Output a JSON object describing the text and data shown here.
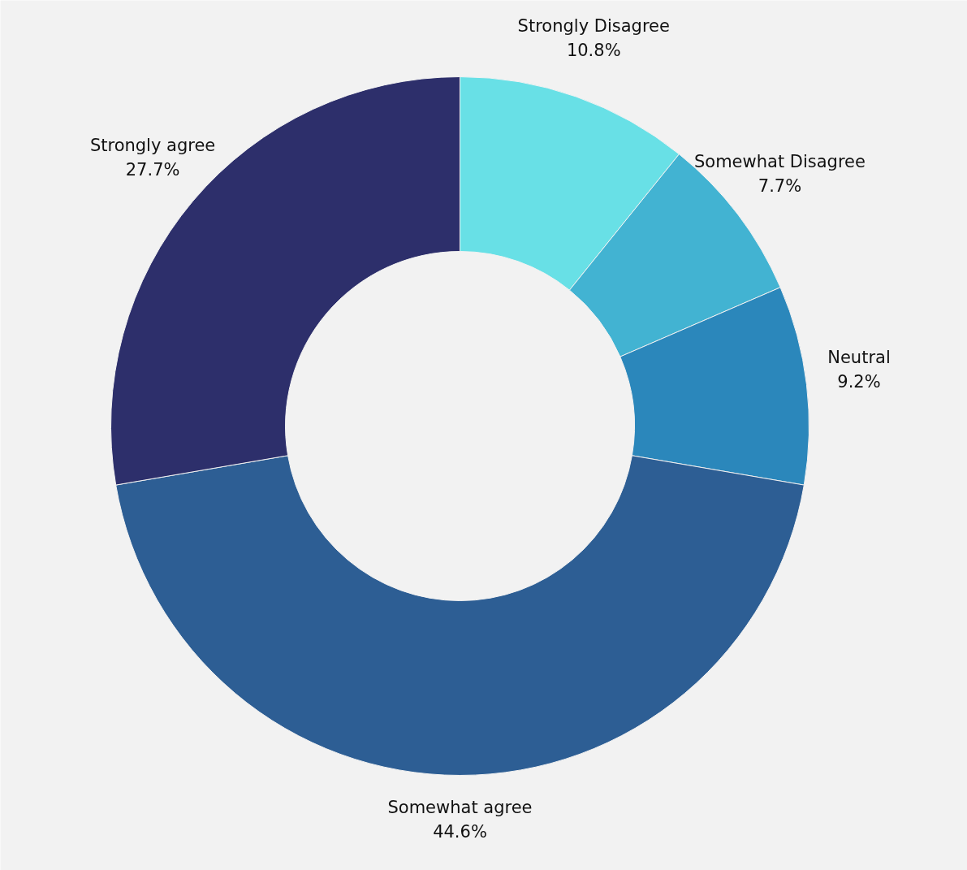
{
  "chart_data": {
    "type": "donut",
    "categories": [
      "Strongly Disagree",
      "Somewhat Disagree",
      "Neutral",
      "Somewhat agree",
      "Strongly agree"
    ],
    "values": [
      10.8,
      7.7,
      9.2,
      44.6,
      27.7
    ],
    "value_labels": [
      "10.8%",
      "7.7%",
      "9.2%",
      "44.6%",
      "27.7%"
    ],
    "colors": [
      "#68e0e6",
      "#42b3d2",
      "#2b87bb",
      "#2d5e94",
      "#2d2f6b"
    ]
  }
}
